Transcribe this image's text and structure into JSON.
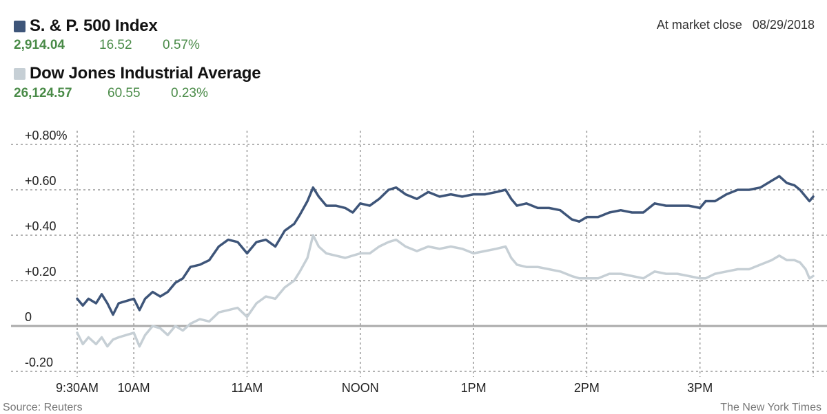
{
  "header": {
    "market_close_label": "At market close",
    "date": "08/29/2018"
  },
  "series_info": [
    {
      "name": "S. & P. 500 Index",
      "price": "2,914.04",
      "change": "16.52",
      "pct": "0.57%",
      "color": "#3e5579"
    },
    {
      "name": "Dow Jones Industrial Average",
      "price": "26,124.57",
      "change": "60.55",
      "pct": "0.23%",
      "color": "#c6cfd5"
    }
  ],
  "colors": {
    "positive": "#4a8b48",
    "grid": "#999999",
    "zero_line": "#aaaaaa"
  },
  "footer": {
    "source": "Source: Reuters",
    "credit": "The New York Times"
  },
  "chart_data": {
    "type": "line",
    "xlabel": "",
    "ylabel": "",
    "x_ticks": [
      "9:30AM",
      "10AM",
      "11AM",
      "NOON",
      "1PM",
      "2PM",
      "3PM"
    ],
    "y_ticks": [
      "+0.80%",
      "+0.60",
      "+0.40",
      "+0.20",
      "0",
      "-0.20"
    ],
    "ylim": [
      -0.2,
      0.8
    ],
    "xlim": [
      "9:30",
      "16:00"
    ],
    "grid": true,
    "series": [
      {
        "name": "S. & P. 500 Index",
        "points": [
          [
            "9:30",
            0.12
          ],
          [
            "9:33",
            0.09
          ],
          [
            "9:36",
            0.12
          ],
          [
            "9:40",
            0.1
          ],
          [
            "9:43",
            0.14
          ],
          [
            "9:46",
            0.1
          ],
          [
            "9:49",
            0.05
          ],
          [
            "9:52",
            0.1
          ],
          [
            "9:56",
            0.11
          ],
          [
            "10:00",
            0.12
          ],
          [
            "10:03",
            0.07
          ],
          [
            "10:06",
            0.12
          ],
          [
            "10:10",
            0.15
          ],
          [
            "10:14",
            0.13
          ],
          [
            "10:18",
            0.15
          ],
          [
            "10:22",
            0.19
          ],
          [
            "10:26",
            0.21
          ],
          [
            "10:30",
            0.26
          ],
          [
            "10:35",
            0.27
          ],
          [
            "10:40",
            0.29
          ],
          [
            "10:45",
            0.35
          ],
          [
            "10:50",
            0.38
          ],
          [
            "10:55",
            0.37
          ],
          [
            "11:00",
            0.32
          ],
          [
            "11:05",
            0.37
          ],
          [
            "11:10",
            0.38
          ],
          [
            "11:15",
            0.35
          ],
          [
            "11:20",
            0.42
          ],
          [
            "11:25",
            0.45
          ],
          [
            "11:28",
            0.49
          ],
          [
            "11:32",
            0.55
          ],
          [
            "11:35",
            0.61
          ],
          [
            "11:38",
            0.57
          ],
          [
            "11:42",
            0.53
          ],
          [
            "11:47",
            0.53
          ],
          [
            "11:52",
            0.52
          ],
          [
            "11:56",
            0.5
          ],
          [
            "12:00",
            0.54
          ],
          [
            "12:05",
            0.53
          ],
          [
            "12:10",
            0.56
          ],
          [
            "12:15",
            0.6
          ],
          [
            "12:19",
            0.61
          ],
          [
            "12:24",
            0.58
          ],
          [
            "12:30",
            0.56
          ],
          [
            "12:36",
            0.59
          ],
          [
            "12:42",
            0.57
          ],
          [
            "12:48",
            0.58
          ],
          [
            "12:54",
            0.57
          ],
          [
            "13:00",
            0.58
          ],
          [
            "13:06",
            0.58
          ],
          [
            "13:12",
            0.59
          ],
          [
            "13:17",
            0.6
          ],
          [
            "13:20",
            0.56
          ],
          [
            "13:23",
            0.53
          ],
          [
            "13:28",
            0.54
          ],
          [
            "13:34",
            0.52
          ],
          [
            "13:40",
            0.52
          ],
          [
            "13:46",
            0.51
          ],
          [
            "13:52",
            0.47
          ],
          [
            "13:56",
            0.46
          ],
          [
            "14:00",
            0.48
          ],
          [
            "14:06",
            0.48
          ],
          [
            "14:12",
            0.5
          ],
          [
            "14:18",
            0.51
          ],
          [
            "14:24",
            0.5
          ],
          [
            "14:30",
            0.5
          ],
          [
            "14:36",
            0.54
          ],
          [
            "14:42",
            0.53
          ],
          [
            "14:48",
            0.53
          ],
          [
            "14:54",
            0.53
          ],
          [
            "15:00",
            0.52
          ],
          [
            "15:03",
            0.55
          ],
          [
            "15:08",
            0.55
          ],
          [
            "15:14",
            0.58
          ],
          [
            "15:20",
            0.6
          ],
          [
            "15:26",
            0.6
          ],
          [
            "15:32",
            0.61
          ],
          [
            "15:38",
            0.64
          ],
          [
            "15:42",
            0.66
          ],
          [
            "15:46",
            0.63
          ],
          [
            "15:50",
            0.62
          ],
          [
            "15:53",
            0.6
          ],
          [
            "15:56",
            0.57
          ],
          [
            "15:58",
            0.55
          ],
          [
            "16:00",
            0.57
          ]
        ]
      },
      {
        "name": "Dow Jones Industrial Average",
        "points": [
          [
            "9:30",
            -0.03
          ],
          [
            "9:33",
            -0.08
          ],
          [
            "9:36",
            -0.05
          ],
          [
            "9:40",
            -0.08
          ],
          [
            "9:43",
            -0.05
          ],
          [
            "9:46",
            -0.09
          ],
          [
            "9:49",
            -0.06
          ],
          [
            "9:52",
            -0.05
          ],
          [
            "9:56",
            -0.04
          ],
          [
            "10:00",
            -0.03
          ],
          [
            "10:03",
            -0.09
          ],
          [
            "10:06",
            -0.04
          ],
          [
            "10:10",
            0.0
          ],
          [
            "10:14",
            -0.01
          ],
          [
            "10:18",
            -0.04
          ],
          [
            "10:22",
            0.0
          ],
          [
            "10:26",
            -0.02
          ],
          [
            "10:30",
            0.01
          ],
          [
            "10:35",
            0.03
          ],
          [
            "10:40",
            0.02
          ],
          [
            "10:45",
            0.06
          ],
          [
            "10:50",
            0.07
          ],
          [
            "10:55",
            0.08
          ],
          [
            "11:00",
            0.04
          ],
          [
            "11:05",
            0.1
          ],
          [
            "11:10",
            0.13
          ],
          [
            "11:15",
            0.12
          ],
          [
            "11:20",
            0.17
          ],
          [
            "11:25",
            0.2
          ],
          [
            "11:28",
            0.24
          ],
          [
            "11:32",
            0.3
          ],
          [
            "11:35",
            0.4
          ],
          [
            "11:38",
            0.35
          ],
          [
            "11:42",
            0.32
          ],
          [
            "11:47",
            0.31
          ],
          [
            "11:52",
            0.3
          ],
          [
            "11:56",
            0.31
          ],
          [
            "12:00",
            0.32
          ],
          [
            "12:05",
            0.32
          ],
          [
            "12:10",
            0.35
          ],
          [
            "12:15",
            0.37
          ],
          [
            "12:19",
            0.38
          ],
          [
            "12:24",
            0.35
          ],
          [
            "12:30",
            0.33
          ],
          [
            "12:36",
            0.35
          ],
          [
            "12:42",
            0.34
          ],
          [
            "12:48",
            0.35
          ],
          [
            "12:54",
            0.34
          ],
          [
            "13:00",
            0.32
          ],
          [
            "13:06",
            0.33
          ],
          [
            "13:12",
            0.34
          ],
          [
            "13:17",
            0.35
          ],
          [
            "13:20",
            0.3
          ],
          [
            "13:23",
            0.27
          ],
          [
            "13:28",
            0.26
          ],
          [
            "13:34",
            0.26
          ],
          [
            "13:40",
            0.25
          ],
          [
            "13:46",
            0.24
          ],
          [
            "13:52",
            0.22
          ],
          [
            "13:56",
            0.21
          ],
          [
            "14:00",
            0.21
          ],
          [
            "14:06",
            0.21
          ],
          [
            "14:12",
            0.23
          ],
          [
            "14:18",
            0.23
          ],
          [
            "14:24",
            0.22
          ],
          [
            "14:30",
            0.21
          ],
          [
            "14:36",
            0.24
          ],
          [
            "14:42",
            0.23
          ],
          [
            "14:48",
            0.23
          ],
          [
            "14:54",
            0.22
          ],
          [
            "15:00",
            0.21
          ],
          [
            "15:03",
            0.21
          ],
          [
            "15:08",
            0.23
          ],
          [
            "15:14",
            0.24
          ],
          [
            "15:20",
            0.25
          ],
          [
            "15:26",
            0.25
          ],
          [
            "15:32",
            0.27
          ],
          [
            "15:38",
            0.29
          ],
          [
            "15:42",
            0.31
          ],
          [
            "15:46",
            0.29
          ],
          [
            "15:50",
            0.29
          ],
          [
            "15:53",
            0.28
          ],
          [
            "15:56",
            0.25
          ],
          [
            "15:58",
            0.21
          ],
          [
            "16:00",
            0.22
          ]
        ]
      }
    ]
  }
}
